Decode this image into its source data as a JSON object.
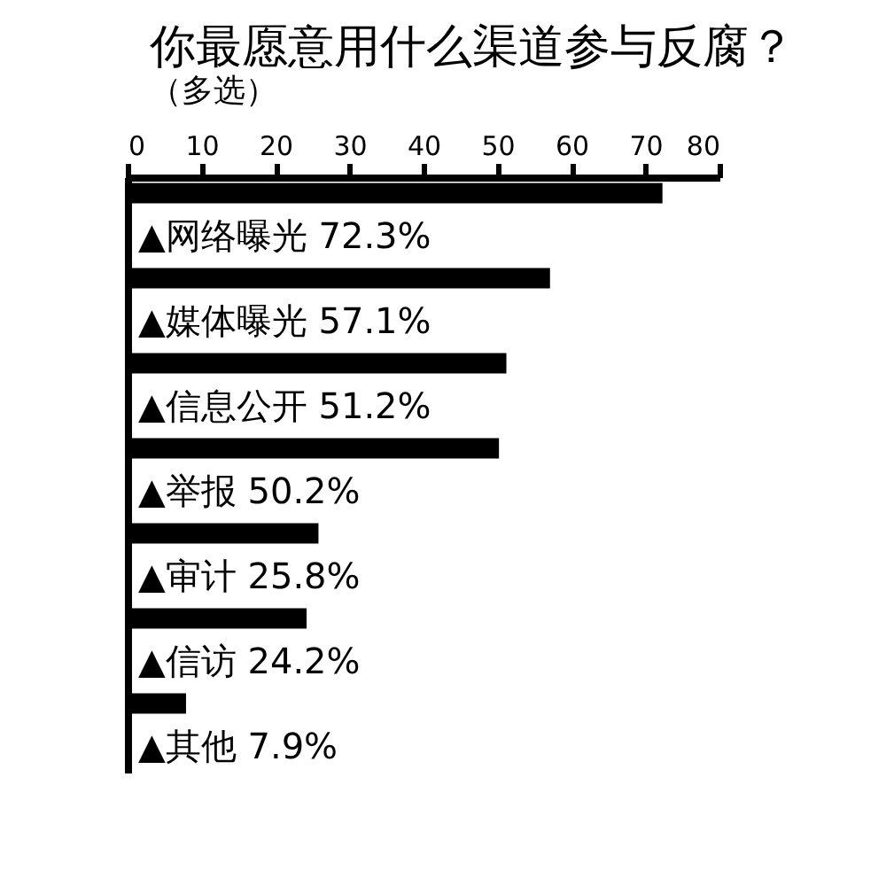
{
  "chart_data": {
    "type": "bar",
    "orientation": "horizontal",
    "title": "你最愿意用什么渠道参与反腐？",
    "subtitle": "（多选）",
    "categories": [
      "▲网络曝光",
      "▲媒体曝光",
      "▲信息公开",
      "▲举报",
      "▲审计",
      "▲信访",
      "▲其他"
    ],
    "values": [
      72.3,
      57.1,
      51.2,
      50.2,
      25.8,
      24.2,
      7.9
    ],
    "value_labels": [
      "72.3%",
      "57.1%",
      "51.2%",
      "50.2%",
      "25.8%",
      "24.2%",
      "7.9%"
    ],
    "color": "#000000",
    "xlim": [
      0,
      80
    ],
    "xticks": [
      0,
      10,
      20,
      30,
      40,
      50,
      60,
      70,
      80
    ]
  }
}
